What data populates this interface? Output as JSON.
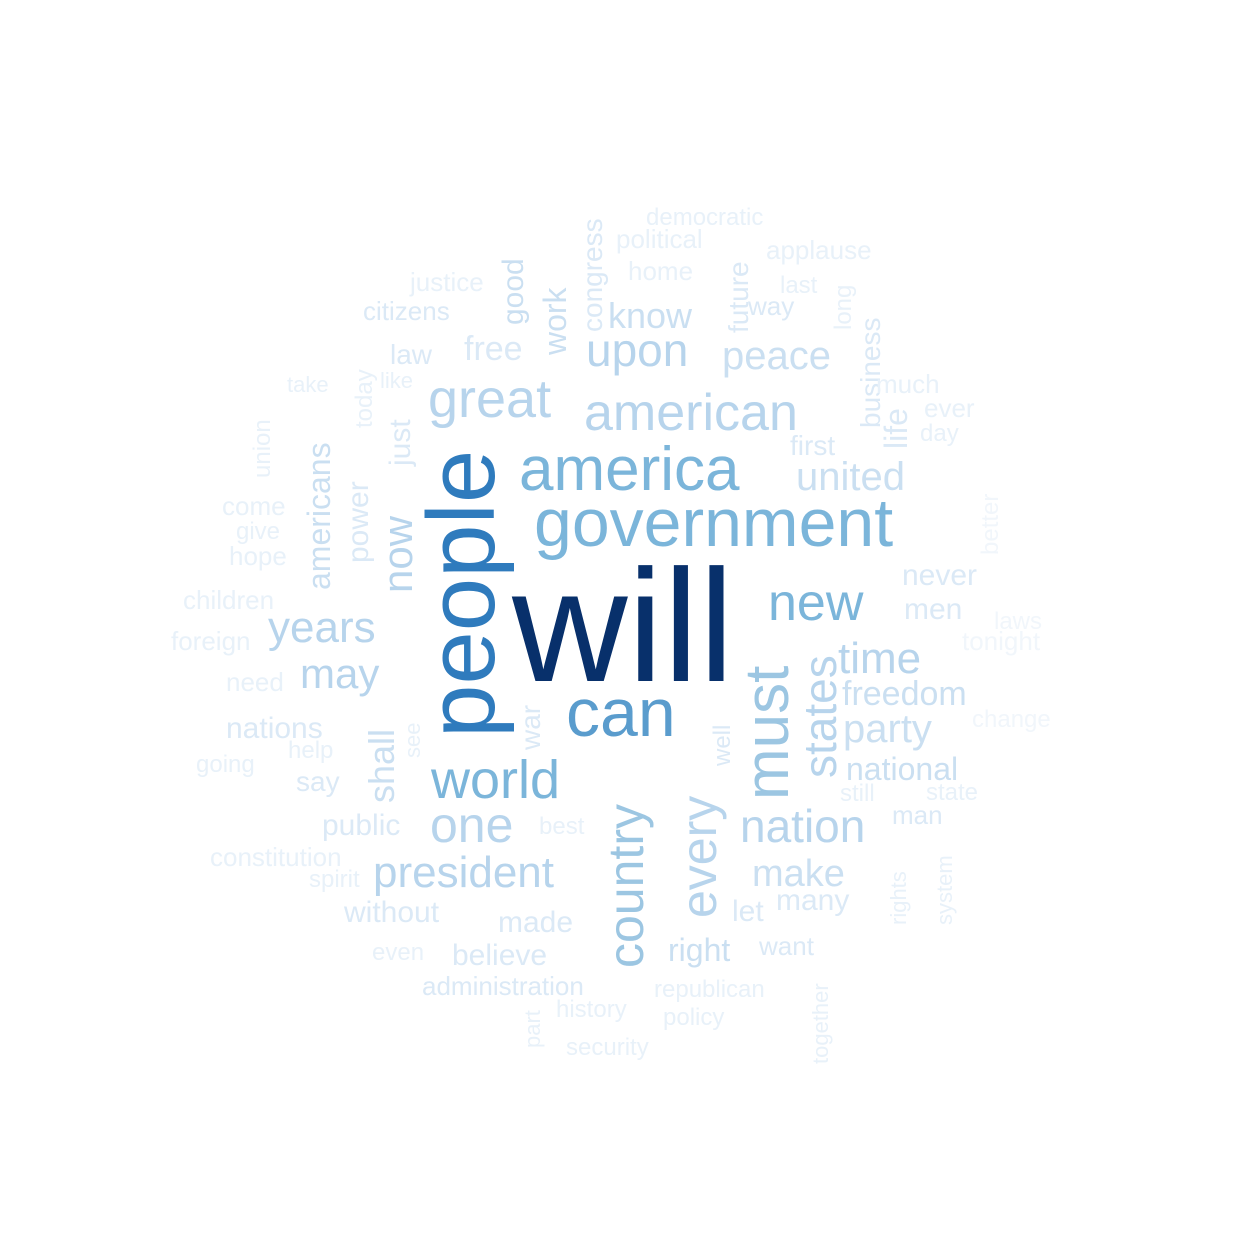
{
  "palette": {
    "background": "#ffffff",
    "c1": "#08306b",
    "c2": "#2f7bbd",
    "c3": "#5a9ccd",
    "c4": "#7bb5da",
    "c5": "#9cc6e2",
    "c6": "#b7d4ec",
    "c7": "#cadff1",
    "c8": "#dbe9f6",
    "c9": "#e8f1f9",
    "c10": "#f1f6fb"
  },
  "words": [
    {
      "text": "will",
      "color": "c1"
    },
    {
      "text": "people",
      "color": "c2"
    },
    {
      "text": "can",
      "color": "c3"
    },
    {
      "text": "government",
      "color": "c4"
    },
    {
      "text": "america",
      "color": "c4"
    },
    {
      "text": "world",
      "color": "c4"
    },
    {
      "text": "must",
      "color": "c5"
    },
    {
      "text": "country",
      "color": "c5"
    },
    {
      "text": "new",
      "color": "c4"
    },
    {
      "text": "american",
      "color": "c6"
    },
    {
      "text": "every",
      "color": "c6"
    },
    {
      "text": "one",
      "color": "c6"
    },
    {
      "text": "states",
      "color": "c6"
    },
    {
      "text": "great",
      "color": "c6"
    },
    {
      "text": "nation",
      "color": "c6"
    },
    {
      "text": "upon",
      "color": "c6"
    },
    {
      "text": "years",
      "color": "c6"
    },
    {
      "text": "president",
      "color": "c6"
    },
    {
      "text": "time",
      "color": "c6"
    },
    {
      "text": "may",
      "color": "c6"
    },
    {
      "text": "now",
      "color": "c6"
    },
    {
      "text": "united",
      "color": "c7"
    },
    {
      "text": "make",
      "color": "c7"
    },
    {
      "text": "shall",
      "color": "c7"
    },
    {
      "text": "party",
      "color": "c7"
    },
    {
      "text": "peace",
      "color": "c7"
    },
    {
      "text": "freedom",
      "color": "c7"
    },
    {
      "text": "know",
      "color": "c7"
    },
    {
      "text": "americans",
      "color": "c7"
    },
    {
      "text": "national",
      "color": "c7"
    },
    {
      "text": "work",
      "color": "c7"
    },
    {
      "text": "right",
      "color": "c7"
    },
    {
      "text": "good",
      "color": "c7"
    },
    {
      "text": "congress",
      "color": "c8"
    },
    {
      "text": "future",
      "color": "c8"
    },
    {
      "text": "free",
      "color": "c8"
    },
    {
      "text": "just",
      "color": "c8"
    },
    {
      "text": "power",
      "color": "c8"
    },
    {
      "text": "nations",
      "color": "c8"
    },
    {
      "text": "believe",
      "color": "c8"
    },
    {
      "text": "made",
      "color": "c8"
    },
    {
      "text": "let",
      "color": "c8"
    },
    {
      "text": "many",
      "color": "c8"
    },
    {
      "text": "never",
      "color": "c8"
    },
    {
      "text": "men",
      "color": "c8"
    },
    {
      "text": "public",
      "color": "c8"
    },
    {
      "text": "without",
      "color": "c8"
    },
    {
      "text": "business",
      "color": "c8"
    },
    {
      "text": "life",
      "color": "c8"
    },
    {
      "text": "first",
      "color": "c8"
    },
    {
      "text": "war",
      "color": "c8"
    },
    {
      "text": "well",
      "color": "c8"
    },
    {
      "text": "say",
      "color": "c8"
    },
    {
      "text": "citizens",
      "color": "c8"
    },
    {
      "text": "law",
      "color": "c8"
    },
    {
      "text": "way",
      "color": "c8"
    },
    {
      "text": "administration",
      "color": "c8"
    },
    {
      "text": "want",
      "color": "c8"
    },
    {
      "text": "man",
      "color": "c8"
    },
    {
      "text": "home",
      "color": "c9"
    },
    {
      "text": "political",
      "color": "c9"
    },
    {
      "text": "democratic",
      "color": "c9"
    },
    {
      "text": "applause",
      "color": "c9"
    },
    {
      "text": "justice",
      "color": "c9"
    },
    {
      "text": "last",
      "color": "c9"
    },
    {
      "text": "long",
      "color": "c9"
    },
    {
      "text": "much",
      "color": "c9"
    },
    {
      "text": "ever",
      "color": "c9"
    },
    {
      "text": "day",
      "color": "c9"
    },
    {
      "text": "like",
      "color": "c9"
    },
    {
      "text": "today",
      "color": "c9"
    },
    {
      "text": "take",
      "color": "c9"
    },
    {
      "text": "union",
      "color": "c9"
    },
    {
      "text": "come",
      "color": "c9"
    },
    {
      "text": "give",
      "color": "c9"
    },
    {
      "text": "hope",
      "color": "c9"
    },
    {
      "text": "children",
      "color": "c9"
    },
    {
      "text": "foreign",
      "color": "c9"
    },
    {
      "text": "need",
      "color": "c9"
    },
    {
      "text": "help",
      "color": "c9"
    },
    {
      "text": "see",
      "color": "c9"
    },
    {
      "text": "going",
      "color": "c9"
    },
    {
      "text": "constitution",
      "color": "c9"
    },
    {
      "text": "spirit",
      "color": "c9"
    },
    {
      "text": "best",
      "color": "c9"
    },
    {
      "text": "even",
      "color": "c9"
    },
    {
      "text": "history",
      "color": "c9"
    },
    {
      "text": "part",
      "color": "c9"
    },
    {
      "text": "security",
      "color": "c9"
    },
    {
      "text": "republican",
      "color": "c9"
    },
    {
      "text": "policy",
      "color": "c9"
    },
    {
      "text": "together",
      "color": "c9"
    },
    {
      "text": "rights",
      "color": "c9"
    },
    {
      "text": "system",
      "color": "c9"
    },
    {
      "text": "still",
      "color": "c9"
    },
    {
      "text": "state",
      "color": "c9"
    },
    {
      "text": "better",
      "color": "c10"
    },
    {
      "text": "laws",
      "color": "c10"
    },
    {
      "text": "tonight",
      "color": "c10"
    },
    {
      "text": "change",
      "color": "c10"
    }
  ]
}
